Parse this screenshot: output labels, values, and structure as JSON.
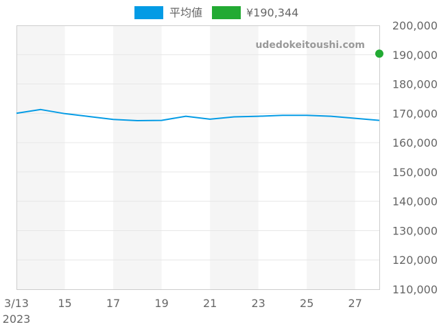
{
  "chart_data": {
    "type": "line",
    "series": [
      {
        "name": "平均値",
        "color": "#039be5",
        "x": [
          "2023-03-13",
          "2023-03-14",
          "2023-03-15",
          "2023-03-16",
          "2023-03-17",
          "2023-03-18",
          "2023-03-19",
          "2023-03-20",
          "2023-03-21",
          "2023-03-22",
          "2023-03-23",
          "2023-03-24",
          "2023-03-25",
          "2023-03-26",
          "2023-03-27",
          "2023-03-28"
        ],
        "values": [
          170000,
          171300,
          169900,
          168900,
          167900,
          167500,
          167600,
          169000,
          168000,
          168800,
          169000,
          169300,
          169300,
          169000,
          168300,
          167600
        ]
      },
      {
        "name": "¥190,344",
        "color": "#22aa33",
        "x": [
          "2023-03-28"
        ],
        "values": [
          190344
        ]
      }
    ],
    "xlim": [
      "2023-03-13",
      "2023-03-28"
    ],
    "ylim": [
      110000,
      200000
    ],
    "x_ticks": [
      "3/13",
      "15",
      "17",
      "19",
      "21",
      "23",
      "25",
      "27"
    ],
    "x_tick_year": "2023",
    "y_ticks": [
      "110,000",
      "120,000",
      "130,000",
      "140,000",
      "150,000",
      "160,000",
      "170,000",
      "180,000",
      "190,000",
      "200,000"
    ],
    "y_axis_side": "right",
    "grid": true,
    "legend_position": "top-center",
    "band_color": "#f5f5f5",
    "grid_color": "#e6e6e6"
  },
  "watermark": "udedokeitoushi.com"
}
